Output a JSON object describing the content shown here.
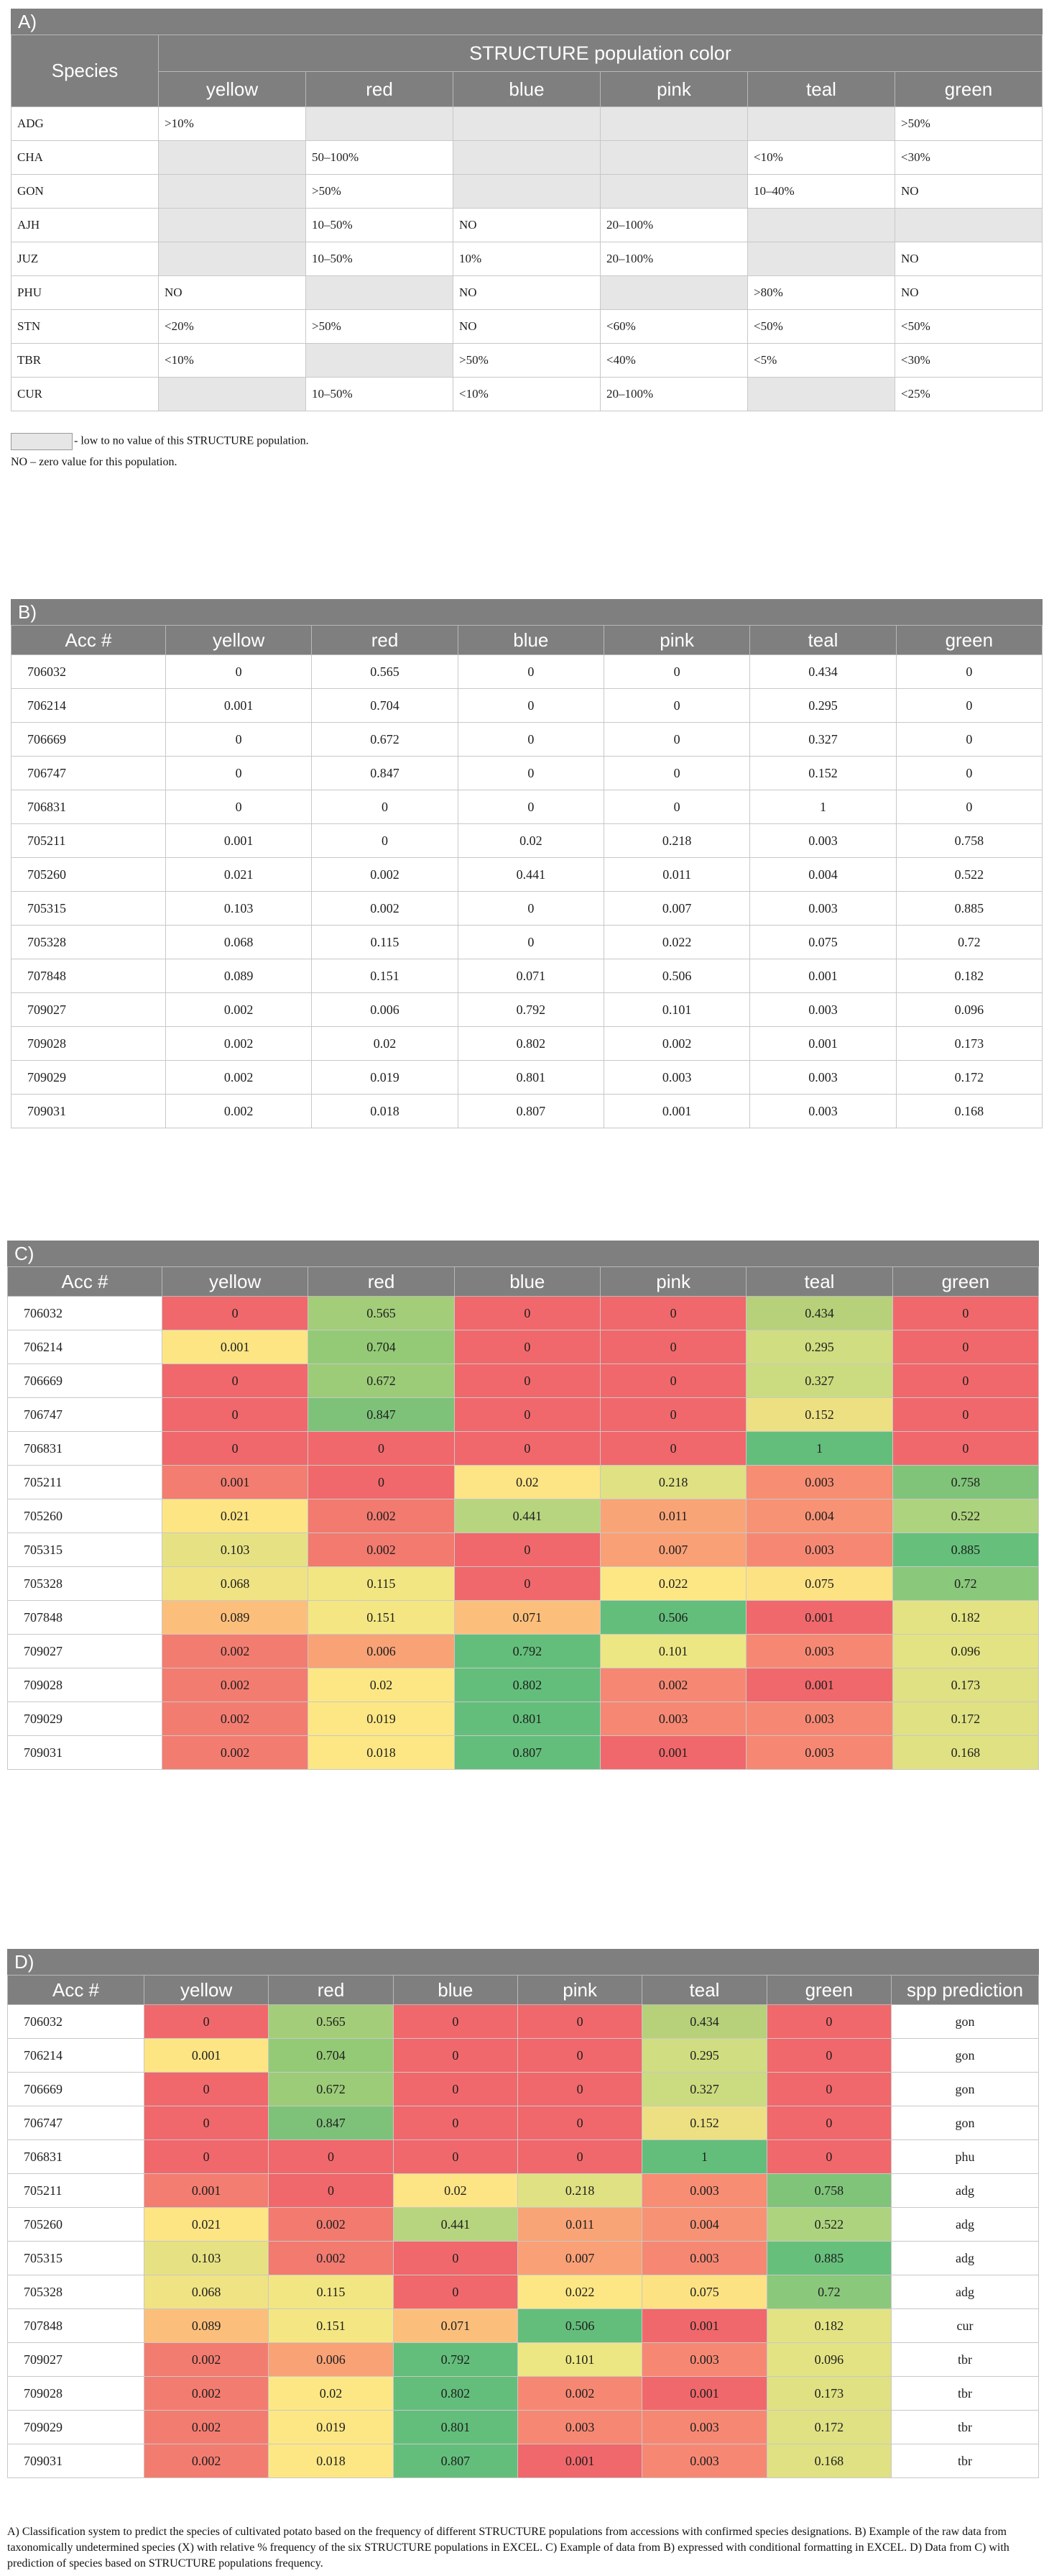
{
  "panelA": {
    "label": "A)",
    "species_header": "Species",
    "group_header": "STRUCTURE population color",
    "columns": [
      "yellow",
      "red",
      "blue",
      "pink",
      "teal",
      "green"
    ],
    "rows": [
      {
        "species": "ADG",
        "cells": [
          ">10%",
          "",
          "",
          "",
          "",
          ">50%"
        ]
      },
      {
        "species": "CHA",
        "cells": [
          "",
          "50–100%",
          "",
          "",
          "<10%",
          "<30%"
        ]
      },
      {
        "species": "GON",
        "cells": [
          "",
          ">50%",
          "",
          "",
          "10–40%",
          "NO"
        ]
      },
      {
        "species": "AJH",
        "cells": [
          "",
          "10–50%",
          "NO",
          "20–100%",
          "",
          ""
        ]
      },
      {
        "species": "JUZ",
        "cells": [
          "",
          "10–50%",
          "10%",
          "20–100%",
          "",
          "NO"
        ]
      },
      {
        "species": "PHU",
        "cells": [
          "NO",
          "",
          "NO",
          "",
          ">80%",
          "NO"
        ]
      },
      {
        "species": "STN",
        "cells": [
          "<20%",
          ">50%",
          "NO",
          "<60%",
          "<50%",
          "<50%"
        ]
      },
      {
        "species": "TBR",
        "cells": [
          "<10%",
          "",
          ">50%",
          "<40%",
          "<5%",
          "<30%"
        ]
      },
      {
        "species": "CUR",
        "cells": [
          "",
          "10–50%",
          "<10%",
          "20–100%",
          "",
          "<25%"
        ]
      }
    ],
    "legend_gray": "- low to no value of this STRUCTURE population.",
    "legend_no": "NO – zero value for this population."
  },
  "acc_header": "Acc #",
  "pred_header": "spp prediction",
  "panelB_label": "B)",
  "panelC_label": "C)",
  "panelD_label": "D)",
  "rows": [
    {
      "acc": "706032",
      "v": [
        "0",
        "0.565",
        "0",
        "0",
        "0.434",
        "0"
      ],
      "pred": "gon"
    },
    {
      "acc": "706214",
      "v": [
        "0.001",
        "0.704",
        "0",
        "0",
        "0.295",
        "0"
      ],
      "pred": "gon"
    },
    {
      "acc": "706669",
      "v": [
        "0",
        "0.672",
        "0",
        "0",
        "0.327",
        "0"
      ],
      "pred": "gon"
    },
    {
      "acc": "706747",
      "v": [
        "0",
        "0.847",
        "0",
        "0",
        "0.152",
        "0"
      ],
      "pred": "gon"
    },
    {
      "acc": "706831",
      "v": [
        "0",
        "0",
        "0",
        "0",
        "1",
        "0"
      ],
      "pred": "phu"
    },
    {
      "acc": "705211",
      "v": [
        "0.001",
        "0",
        "0.02",
        "0.218",
        "0.003",
        "0.758"
      ],
      "pred": "adg"
    },
    {
      "acc": "705260",
      "v": [
        "0.021",
        "0.002",
        "0.441",
        "0.011",
        "0.004",
        "0.522"
      ],
      "pred": "adg"
    },
    {
      "acc": "705315",
      "v": [
        "0.103",
        "0.002",
        "0",
        "0.007",
        "0.003",
        "0.885"
      ],
      "pred": "adg"
    },
    {
      "acc": "705328",
      "v": [
        "0.068",
        "0.115",
        "0",
        "0.022",
        "0.075",
        "0.72"
      ],
      "pred": "adg"
    },
    {
      "acc": "707848",
      "v": [
        "0.089",
        "0.151",
        "0.071",
        "0.506",
        "0.001",
        "0.182"
      ],
      "pred": "cur"
    },
    {
      "acc": "709027",
      "v": [
        "0.002",
        "0.006",
        "0.792",
        "0.101",
        "0.003",
        "0.096"
      ],
      "pred": "tbr"
    },
    {
      "acc": "709028",
      "v": [
        "0.002",
        "0.02",
        "0.802",
        "0.002",
        "0.001",
        "0.173"
      ],
      "pred": "tbr"
    },
    {
      "acc": "709029",
      "v": [
        "0.002",
        "0.019",
        "0.801",
        "0.003",
        "0.003",
        "0.172"
      ],
      "pred": "tbr"
    },
    {
      "acc": "709031",
      "v": [
        "0.002",
        "0.018",
        "0.807",
        "0.001",
        "0.003",
        "0.168"
      ],
      "pred": "tbr"
    }
  ],
  "heat_colors": {
    "706032": [
      "#f0686b",
      "#a3cd79",
      "#f0686b",
      "#f0686b",
      "#b6d17a",
      "#f0686b"
    ],
    "706214": [
      "#fde584",
      "#94ca76",
      "#f0686b",
      "#f0686b",
      "#d0dd80",
      "#f0686b"
    ],
    "706669": [
      "#f0686b",
      "#9ccc78",
      "#f0686b",
      "#f0686b",
      "#cbdb7f",
      "#f0686b"
    ],
    "706747": [
      "#f0686b",
      "#7ec27a",
      "#f0686b",
      "#f0686b",
      "#ece082",
      "#f0686b"
    ],
    "706831": [
      "#f0686b",
      "#f0686b",
      "#f0686b",
      "#f0686b",
      "#63be7b",
      "#f0686b"
    ],
    "705211": [
      "#f27d70",
      "#f0686b",
      "#fde484",
      "#dfe183",
      "#f78d73",
      "#80c47a"
    ],
    "705260": [
      "#fde584",
      "#f27a6f",
      "#b7d57e",
      "#f9a477",
      "#f79275",
      "#aed37e"
    ],
    "705315": [
      "#e6e283",
      "#f27a6f",
      "#f0686b",
      "#f9a076",
      "#f68873",
      "#66c07c"
    ],
    "705328": [
      "#f0e383",
      "#f2e682",
      "#f0686b",
      "#fde784",
      "#fde283",
      "#8ac87c"
    ],
    "707848": [
      "#fcbf7b",
      "#f4e783",
      "#fcbf7b",
      "#63be7b",
      "#f0686b",
      "#e3e383"
    ],
    "709027": [
      "#f37c70",
      "#f8a276",
      "#63be7b",
      "#ece782",
      "#f68873",
      "#e3e383"
    ],
    "709028": [
      "#f37c70",
      "#fde784",
      "#63be7b",
      "#f68873",
      "#f0686b",
      "#dfe183"
    ],
    "709029": [
      "#f37c70",
      "#fde784",
      "#63be7b",
      "#f68873",
      "#f68873",
      "#dfe183"
    ],
    "709031": [
      "#f37c70",
      "#fde784",
      "#63be7b",
      "#f0686b",
      "#f68873",
      "#dfe183"
    ]
  },
  "caption": "A) Classification system to predict the species of cultivated potato based on the frequency of different STRUCTURE populations from accessions with confirmed species designations. B) Example of the raw data from taxonomically undetermined species (X) with relative % frequency of the six STRUCTURE populations in EXCEL. C) Example of data from B) expressed with conditional formatting in EXCEL. D) Data from C) with prediction of species based on STRUCTURE populations frequency."
}
